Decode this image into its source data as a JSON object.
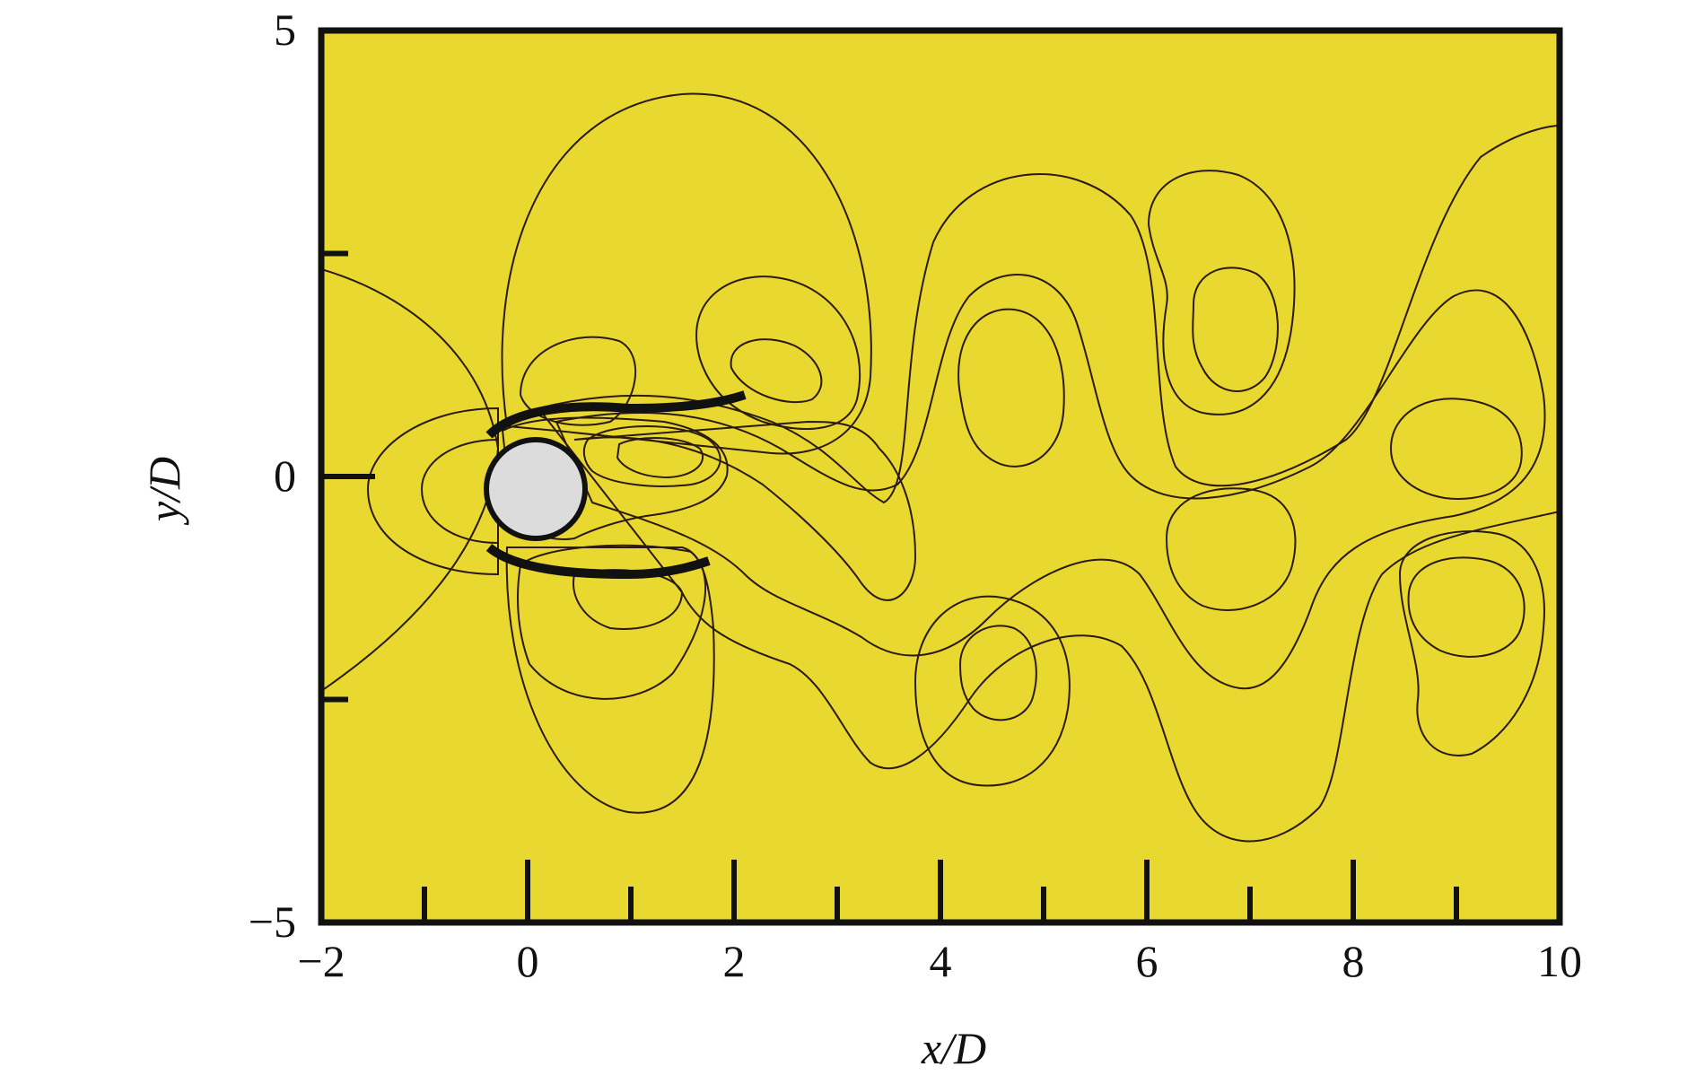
{
  "chart_data": {
    "type": "heatmap",
    "title": "",
    "xlabel": "x/D",
    "ylabel": "y/D",
    "xlim": [
      -2,
      10
    ],
    "ylim": [
      -5,
      5
    ],
    "x_ticks": [
      -2,
      0,
      2,
      4,
      6,
      8,
      10
    ],
    "x_tick_labels": [
      "−2",
      "0",
      "2",
      "4",
      "6",
      "8",
      "10"
    ],
    "y_ticks": [
      -5,
      0,
      5
    ],
    "y_tick_labels": [
      "−5",
      "0",
      "5"
    ],
    "x_minor_ticks": [
      -1,
      0,
      1,
      2,
      3,
      4,
      5,
      6,
      7,
      8,
      9
    ],
    "y_minor_ticks": [
      -2.5,
      2.5
    ],
    "legend": "none",
    "grid": false,
    "colormap": [
      "#1f3fd0",
      "#3f7fe0",
      "#56d6b8",
      "#8fcf1a",
      "#b9e03a",
      "#dfe83a",
      "#e8d830",
      "#f3a335",
      "#f2743a",
      "#e83d1a"
    ],
    "background_color": "#e8d830",
    "cylinder": {
      "center": [
        0,
        0
      ],
      "diameter": 1,
      "color": "#dcdcdc"
    },
    "vortex_cores": [
      {
        "x": 1.3,
        "y": 0.35,
        "sign": "negative",
        "color": "#1f3fd0"
      },
      {
        "x": 2.4,
        "y": 1.2,
        "sign": "positive",
        "color": "#e83d1a"
      },
      {
        "x": 0.6,
        "y": 1.0,
        "sign": "positive",
        "color": "#e83d1a"
      },
      {
        "x": 1.0,
        "y": -1.0,
        "sign": "positive",
        "color": "#e83d1a"
      },
      {
        "x": 4.5,
        "y": 0.9,
        "sign": "negative",
        "color": "#8fcf1a"
      },
      {
        "x": 4.6,
        "y": -1.6,
        "sign": "positive",
        "color": "#e83d1a"
      },
      {
        "x": 6.8,
        "y": 1.2,
        "sign": "positive",
        "color": "#e83d1a"
      },
      {
        "x": 6.8,
        "y": -0.4,
        "sign": "negative",
        "color": "#8fcf1a"
      },
      {
        "x": 8.9,
        "y": 0.4,
        "sign": "negative",
        "color": "#8fcf1a"
      },
      {
        "x": 9.0,
        "y": -1.2,
        "sign": "positive",
        "color": "#e83d1a"
      }
    ]
  }
}
